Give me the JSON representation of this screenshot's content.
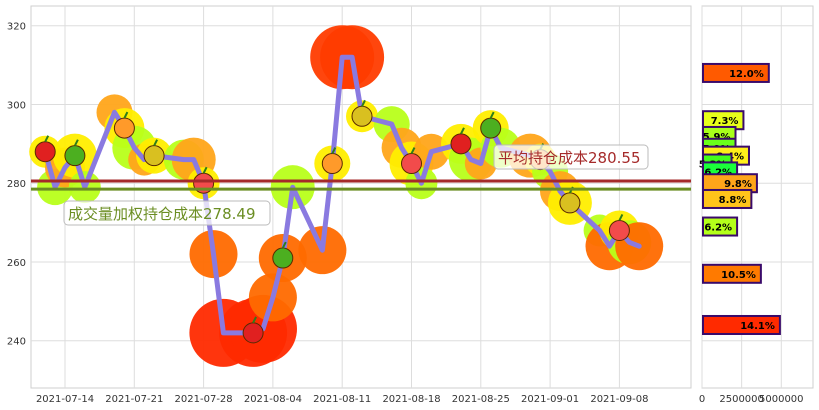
{
  "chart_data": [
    {
      "type": "line",
      "title": "",
      "xlabel": "",
      "ylabel": "",
      "ylim": [
        228,
        325
      ],
      "grid": true,
      "x_ticks": [
        "2021-07-14",
        "2021-07-21",
        "2021-07-28",
        "2021-08-04",
        "2021-08-11",
        "2021-08-18",
        "2021-08-25",
        "2021-09-01",
        "2021-09-08"
      ],
      "y_ticks": [
        240,
        260,
        280,
        300,
        320
      ],
      "series": [
        {
          "x": [
            "2021-07-12",
            "2021-07-13",
            "2021-07-14",
            "2021-07-15",
            "2021-07-16",
            "2021-07-19",
            "2021-07-20",
            "2021-07-21",
            "2021-07-22",
            "2021-07-23",
            "2021-07-26",
            "2021-07-27",
            "2021-07-28",
            "2021-07-29",
            "2021-07-30",
            "2021-08-02",
            "2021-08-03",
            "2021-08-04",
            "2021-08-05",
            "2021-08-06",
            "2021-08-09",
            "2021-08-10",
            "2021-08-11",
            "2021-08-12",
            "2021-08-13",
            "2021-08-16",
            "2021-08-17",
            "2021-08-18",
            "2021-08-19",
            "2021-08-20",
            "2021-08-23",
            "2021-08-24",
            "2021-08-25",
            "2021-08-26",
            "2021-08-27",
            "2021-08-30",
            "2021-08-31",
            "2021-09-01",
            "2021-09-02",
            "2021-09-03",
            "2021-09-06",
            "2021-09-07",
            "2021-09-08",
            "2021-09-09",
            "2021-09-10"
          ],
          "values": [
            288,
            279,
            284,
            287,
            279,
            298,
            294,
            289,
            286,
            287,
            286,
            286,
            280,
            262,
            242,
            242,
            243,
            251,
            261,
            279,
            263,
            285,
            312,
            312,
            297,
            295,
            289,
            285,
            280,
            288,
            290,
            286,
            285,
            294,
            289,
            287,
            286,
            283,
            278,
            275,
            268,
            264,
            268,
            265,
            264
          ]
        }
      ],
      "lines": [
        {
          "label": "平均持仓成本280.55",
          "value": 280.55,
          "color": "#a52a2a"
        },
        {
          "label": "成交量加权持仓成本278.49",
          "value": 278.49,
          "color": "#6b8e23"
        }
      ]
    },
    {
      "type": "bar",
      "orientation": "horizontal",
      "x_ticks": [
        "0",
        "2500000",
        "5000000"
      ],
      "xlim": [
        0,
        7500000
      ],
      "bars": [
        {
          "price": 308,
          "volume": 4150000,
          "label": "12.0%",
          "color": "#ff5a00"
        },
        {
          "price": 296,
          "volume": 2550000,
          "label": "7.3%",
          "color": "#e8ff1a"
        },
        {
          "price": 292,
          "volume": 2050000,
          "label": "5.9%",
          "color": "#a8ff1a"
        },
        {
          "price": 289,
          "volume": 2050000,
          "label": "5.9%",
          "color": "#6aff1a"
        },
        {
          "price": 287,
          "volume": 2900000,
          "label": "8.4%",
          "color": "#ffee1a"
        },
        {
          "price": 285,
          "volume": 1800000,
          "label": "5.3%",
          "color": "#44ff1a"
        },
        {
          "price": 283,
          "volume": 2150000,
          "label": "6.2%",
          "color": "#1aff3a"
        },
        {
          "price": 280,
          "volume": 3400000,
          "label": "9.8%",
          "color": "#ffa51a"
        },
        {
          "price": 276,
          "volume": 3050000,
          "label": "8.8%",
          "color": "#ffc41a"
        },
        {
          "price": 269,
          "volume": 2150000,
          "label": "6.2%",
          "color": "#b4ff1a"
        },
        {
          "price": 257,
          "volume": 3650000,
          "label": "10.5%",
          "color": "#ff7a00"
        },
        {
          "price": 244,
          "volume": 4850000,
          "label": "14.1%",
          "color": "#ff2a00"
        }
      ]
    }
  ]
}
